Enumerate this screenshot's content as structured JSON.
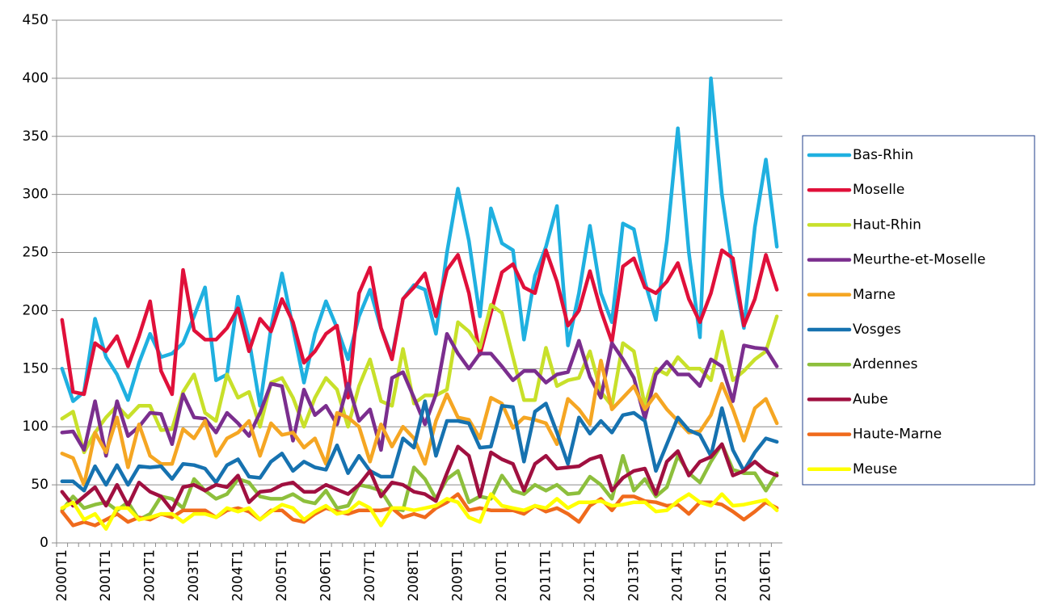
{
  "chart_data": {
    "type": "line",
    "categories": [
      "2000T1",
      null,
      null,
      null,
      "2001T1",
      null,
      null,
      null,
      "2002T1",
      null,
      null,
      null,
      "2003T1",
      null,
      null,
      null,
      "2004T1",
      null,
      null,
      null,
      "2005T1",
      null,
      null,
      null,
      "2006T1",
      null,
      null,
      null,
      "2007T1",
      null,
      null,
      null,
      "2008T1",
      null,
      null,
      null,
      "2009T1",
      null,
      null,
      null,
      "2010T1",
      null,
      null,
      null,
      "2011T1",
      null,
      null,
      null,
      "2012T1",
      null,
      null,
      null,
      "2013T1",
      null,
      null,
      null,
      "2014T1",
      null,
      null,
      null,
      "2015T1",
      null,
      null,
      null,
      "2016T1",
      null
    ],
    "ylim": [
      0,
      450
    ],
    "yticks": [
      0,
      50,
      100,
      150,
      200,
      250,
      300,
      350,
      400,
      450
    ],
    "grid": true,
    "legend": "right",
    "series": [
      {
        "name": "Bas-Rhin",
        "color": "#1fb0e0",
        "values": [
          150,
          122,
          130,
          193,
          160,
          145,
          123,
          155,
          180,
          160,
          163,
          172,
          195,
          220,
          140,
          145,
          212,
          175,
          118,
          185,
          232,
          185,
          138,
          180,
          208,
          185,
          158,
          195,
          218,
          185,
          160,
          210,
          222,
          218,
          180,
          250,
          305,
          260,
          195,
          288,
          258,
          252,
          175,
          230,
          255,
          290,
          170,
          215,
          273,
          215,
          190,
          275,
          270,
          225,
          192,
          260,
          357,
          250,
          177,
          400,
          300,
          235,
          185,
          272,
          330,
          255
        ]
      },
      {
        "name": "Moselle",
        "color": "#e0103a",
        "values": [
          192,
          130,
          128,
          172,
          165,
          178,
          152,
          178,
          208,
          148,
          128,
          235,
          183,
          175,
          175,
          185,
          202,
          165,
          193,
          182,
          210,
          190,
          155,
          165,
          180,
          187,
          125,
          215,
          237,
          185,
          158,
          210,
          220,
          232,
          195,
          235,
          248,
          215,
          162,
          198,
          233,
          240,
          220,
          215,
          252,
          225,
          187,
          200,
          234,
          200,
          173,
          238,
          245,
          220,
          215,
          225,
          241,
          210,
          190,
          215,
          252,
          245,
          187,
          210,
          248,
          218
        ]
      },
      {
        "name": "Haut-Rhin",
        "color": "#c8e02a",
        "values": [
          107,
          113,
          78,
          95,
          108,
          118,
          108,
          118,
          118,
          97,
          98,
          130,
          145,
          112,
          105,
          145,
          125,
          130,
          100,
          138,
          142,
          125,
          100,
          125,
          142,
          132,
          100,
          135,
          158,
          122,
          118,
          167,
          120,
          127,
          127,
          132,
          190,
          182,
          168,
          205,
          198,
          160,
          123,
          123,
          168,
          135,
          140,
          142,
          165,
          130,
          118,
          172,
          165,
          118,
          150,
          145,
          160,
          150,
          150,
          140,
          182,
          140,
          148,
          158,
          165,
          195
        ]
      },
      {
        "name": "Meurthe-et-Moselle",
        "color": "#7b2e8e",
        "values": [
          95,
          96,
          80,
          122,
          75,
          122,
          92,
          100,
          112,
          111,
          85,
          128,
          108,
          107,
          95,
          112,
          103,
          92,
          112,
          137,
          135,
          88,
          132,
          110,
          118,
          102,
          137,
          105,
          115,
          80,
          142,
          147,
          125,
          102,
          128,
          180,
          163,
          150,
          163,
          163,
          152,
          140,
          148,
          148,
          138,
          145,
          147,
          174,
          143,
          125,
          172,
          158,
          142,
          107,
          145,
          156,
          145,
          145,
          135,
          158,
          152,
          122,
          170,
          168,
          167,
          152
        ]
      },
      {
        "name": "Marne",
        "color": "#f5a623",
        "values": [
          77,
          73,
          50,
          95,
          78,
          108,
          65,
          102,
          75,
          68,
          68,
          98,
          90,
          105,
          75,
          90,
          95,
          105,
          75,
          103,
          93,
          95,
          82,
          90,
          68,
          112,
          108,
          100,
          70,
          102,
          83,
          100,
          90,
          68,
          105,
          128,
          108,
          106,
          90,
          125,
          120,
          99,
          108,
          106,
          103,
          85,
          124,
          115,
          102,
          157,
          115,
          125,
          135,
          115,
          128,
          115,
          105,
          95,
          96,
          110,
          137,
          115,
          88,
          116,
          124,
          103
        ]
      },
      {
        "name": "Vosges",
        "color": "#1672b0",
        "values": [
          53,
          53,
          45,
          66,
          50,
          67,
          50,
          66,
          65,
          66,
          55,
          68,
          67,
          64,
          52,
          67,
          72,
          57,
          56,
          70,
          77,
          62,
          70,
          65,
          63,
          84,
          60,
          75,
          62,
          57,
          57,
          90,
          82,
          122,
          75,
          105,
          105,
          103,
          82,
          83,
          118,
          117,
          70,
          113,
          120,
          95,
          68,
          108,
          94,
          105,
          95,
          110,
          112,
          105,
          62,
          85,
          108,
          97,
          93,
          75,
          116,
          80,
          62,
          78,
          90,
          87
        ]
      },
      {
        "name": "Ardennes",
        "color": "#8dbf3c",
        "values": [
          28,
          40,
          30,
          33,
          35,
          28,
          35,
          20,
          25,
          40,
          38,
          30,
          55,
          45,
          38,
          42,
          55,
          52,
          40,
          38,
          38,
          42,
          36,
          34,
          45,
          30,
          32,
          50,
          48,
          45,
          30,
          28,
          65,
          55,
          38,
          55,
          62,
          35,
          40,
          38,
          58,
          45,
          42,
          50,
          45,
          50,
          42,
          43,
          57,
          50,
          38,
          75,
          45,
          55,
          40,
          48,
          75,
          60,
          52,
          70,
          85,
          63,
          60,
          60,
          45,
          60
        ]
      },
      {
        "name": "Aube",
        "color": "#a01040",
        "values": [
          44,
          32,
          40,
          48,
          32,
          50,
          32,
          52,
          44,
          40,
          28,
          48,
          50,
          45,
          50,
          48,
          58,
          35,
          44,
          45,
          50,
          52,
          44,
          44,
          50,
          46,
          42,
          50,
          62,
          40,
          52,
          50,
          44,
          42,
          36,
          60,
          83,
          75,
          40,
          78,
          72,
          68,
          45,
          68,
          75,
          64,
          65,
          66,
          72,
          75,
          45,
          56,
          62,
          64,
          42,
          70,
          79,
          58,
          70,
          74,
          85,
          58,
          62,
          70,
          62,
          58
        ]
      },
      {
        "name": "Haute-Marne",
        "color": "#f06a1c",
        "values": [
          27,
          15,
          18,
          15,
          20,
          25,
          18,
          22,
          20,
          25,
          22,
          28,
          28,
          28,
          22,
          28,
          30,
          27,
          20,
          28,
          28,
          20,
          18,
          25,
          30,
          27,
          25,
          28,
          28,
          28,
          30,
          22,
          25,
          22,
          30,
          35,
          42,
          28,
          30,
          28,
          28,
          28,
          25,
          32,
          27,
          30,
          25,
          18,
          32,
          38,
          28,
          40,
          40,
          36,
          35,
          32,
          33,
          25,
          35,
          35,
          33,
          27,
          20,
          27,
          35,
          30
        ]
      },
      {
        "name": "Meuse",
        "color": "#ffff00",
        "values": [
          30,
          35,
          20,
          25,
          12,
          30,
          30,
          20,
          22,
          25,
          25,
          18,
          25,
          25,
          22,
          30,
          27,
          30,
          20,
          27,
          33,
          30,
          20,
          27,
          32,
          25,
          27,
          35,
          30,
          15,
          30,
          30,
          28,
          30,
          32,
          38,
          35,
          22,
          18,
          42,
          32,
          30,
          28,
          32,
          30,
          38,
          30,
          35,
          35,
          36,
          32,
          33,
          35,
          35,
          27,
          28,
          36,
          42,
          35,
          32,
          42,
          32,
          33,
          35,
          37,
          28
        ]
      }
    ]
  }
}
